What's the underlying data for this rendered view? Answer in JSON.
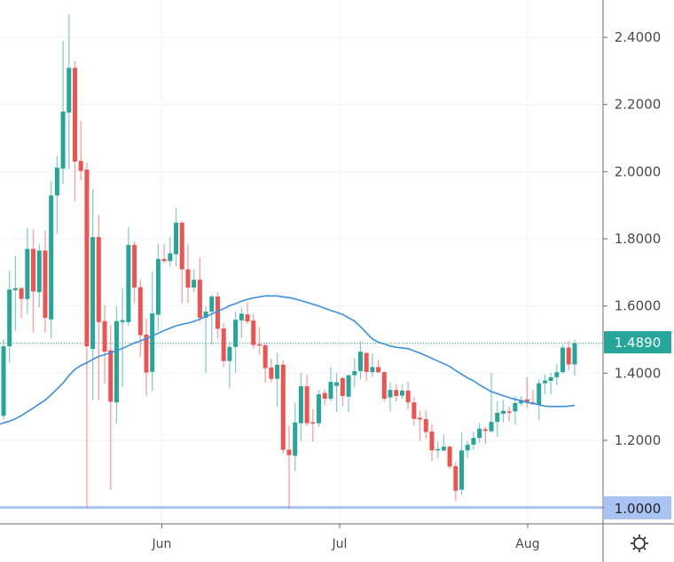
{
  "chart_data": {
    "type": "candlestick",
    "interval": "daily",
    "ylim": [
      0.95,
      2.51
    ],
    "grid": true,
    "y_ticks": [
      "2.4000",
      "2.2000",
      "2.0000",
      "1.8000",
      "1.6000",
      "1.4000",
      "1.2000"
    ],
    "y_tick_values": [
      2.4,
      2.2,
      2.0,
      1.8,
      1.6,
      1.4,
      1.2
    ],
    "x_ticks": [
      "Jun",
      "Jul",
      "Aug"
    ],
    "last_price": {
      "label": "1.4890",
      "value": 1.489,
      "color": "#26a69a"
    },
    "horizontal_line": {
      "label": "1.0000",
      "value": 1.0,
      "color": "#a9c3f2"
    },
    "colors": {
      "up": "#26a69a",
      "down": "#ef5350",
      "ma": "#3a8fe0"
    },
    "candles_ohlc": [
      [
        1.273,
        1.5,
        1.263,
        1.48
      ],
      [
        1.48,
        1.704,
        1.431,
        1.649
      ],
      [
        1.647,
        1.75,
        1.525,
        1.653
      ],
      [
        1.653,
        1.656,
        1.563,
        1.621
      ],
      [
        1.621,
        1.833,
        1.576,
        1.77
      ],
      [
        1.77,
        1.828,
        1.522,
        1.643
      ],
      [
        1.641,
        1.784,
        1.596,
        1.765
      ],
      [
        1.765,
        1.823,
        1.522,
        1.565
      ],
      [
        1.56,
        1.971,
        1.502,
        1.929
      ],
      [
        1.929,
        2.045,
        1.815,
        2.012
      ],
      [
        2.009,
        2.39,
        1.964,
        2.179
      ],
      [
        2.176,
        2.469,
        2.007,
        2.309
      ],
      [
        2.309,
        2.329,
        1.912,
        2.03
      ],
      [
        2.032,
        2.151,
        1.974,
        2.002
      ],
      [
        2.006,
        2.027,
        1.0,
        1.48
      ],
      [
        1.472,
        1.949,
        1.32,
        1.805
      ],
      [
        1.805,
        1.871,
        1.32,
        1.552
      ],
      [
        1.555,
        1.603,
        1.369,
        1.464
      ],
      [
        1.468,
        1.542,
        1.053,
        1.315
      ],
      [
        1.313,
        1.599,
        1.25,
        1.555
      ],
      [
        1.552,
        1.653,
        1.359,
        1.558
      ],
      [
        1.552,
        1.835,
        1.54,
        1.782
      ],
      [
        1.782,
        1.793,
        1.608,
        1.655
      ],
      [
        1.656,
        1.68,
        1.449,
        1.513
      ],
      [
        1.515,
        1.563,
        1.333,
        1.402
      ],
      [
        1.404,
        1.702,
        1.347,
        1.578
      ],
      [
        1.574,
        1.784,
        1.525,
        1.74
      ],
      [
        1.74,
        1.784,
        1.727,
        1.734
      ],
      [
        1.734,
        1.806,
        1.717,
        1.757
      ],
      [
        1.754,
        1.891,
        1.717,
        1.848
      ],
      [
        1.848,
        1.853,
        1.608,
        1.709
      ],
      [
        1.709,
        1.784,
        1.608,
        1.655
      ],
      [
        1.655,
        1.709,
        1.641,
        1.678
      ],
      [
        1.678,
        1.744,
        1.552,
        1.565
      ],
      [
        1.565,
        1.599,
        1.401,
        1.583
      ],
      [
        1.583,
        1.633,
        1.485,
        1.628
      ],
      [
        1.628,
        1.641,
        1.502,
        1.532
      ],
      [
        1.533,
        1.549,
        1.418,
        1.436
      ],
      [
        1.436,
        1.493,
        1.355,
        1.478
      ],
      [
        1.478,
        1.583,
        1.401,
        1.559
      ],
      [
        1.557,
        1.596,
        1.505,
        1.577
      ],
      [
        1.575,
        1.61,
        1.546,
        1.554
      ],
      [
        1.557,
        1.575,
        1.473,
        1.484
      ],
      [
        1.486,
        1.537,
        1.455,
        1.482
      ],
      [
        1.483,
        1.491,
        1.372,
        1.415
      ],
      [
        1.417,
        1.443,
        1.372,
        1.383
      ],
      [
        1.383,
        1.461,
        1.299,
        1.425
      ],
      [
        1.425,
        1.438,
        1.161,
        1.172
      ],
      [
        1.172,
        1.244,
        0.997,
        1.156
      ],
      [
        1.154,
        1.311,
        1.108,
        1.253
      ],
      [
        1.251,
        1.401,
        1.198,
        1.361
      ],
      [
        1.361,
        1.395,
        1.242,
        1.251
      ],
      [
        1.254,
        1.293,
        1.196,
        1.251
      ],
      [
        1.251,
        1.35,
        1.24,
        1.337
      ],
      [
        1.341,
        1.352,
        1.304,
        1.324
      ],
      [
        1.324,
        1.418,
        1.317,
        1.374
      ],
      [
        1.362,
        1.401,
        1.284,
        1.373
      ],
      [
        1.385,
        1.39,
        1.302,
        1.332
      ],
      [
        1.33,
        1.394,
        1.284,
        1.394
      ],
      [
        1.394,
        1.445,
        1.358,
        1.406
      ],
      [
        1.406,
        1.495,
        1.381,
        1.464
      ],
      [
        1.46,
        1.462,
        1.376,
        1.404
      ],
      [
        1.403,
        1.458,
        1.389,
        1.418
      ],
      [
        1.418,
        1.44,
        1.399,
        1.403
      ],
      [
        1.403,
        1.405,
        1.317,
        1.324
      ],
      [
        1.328,
        1.373,
        1.286,
        1.35
      ],
      [
        1.35,
        1.367,
        1.315,
        1.332
      ],
      [
        1.333,
        1.366,
        1.323,
        1.348
      ],
      [
        1.348,
        1.374,
        1.291,
        1.313
      ],
      [
        1.313,
        1.329,
        1.244,
        1.264
      ],
      [
        1.267,
        1.288,
        1.198,
        1.262
      ],
      [
        1.263,
        1.289,
        1.205,
        1.225
      ],
      [
        1.226,
        1.247,
        1.138,
        1.17
      ],
      [
        1.17,
        1.196,
        1.148,
        1.174
      ],
      [
        1.17,
        1.218,
        1.167,
        1.181
      ],
      [
        1.181,
        1.185,
        1.115,
        1.122
      ],
      [
        1.123,
        1.135,
        1.02,
        1.05
      ],
      [
        1.053,
        1.223,
        1.038,
        1.17
      ],
      [
        1.17,
        1.198,
        1.147,
        1.187
      ],
      [
        1.187,
        1.225,
        1.172,
        1.207
      ],
      [
        1.207,
        1.251,
        1.194,
        1.235
      ],
      [
        1.233,
        1.24,
        1.189,
        1.228
      ],
      [
        1.227,
        1.401,
        1.223,
        1.255
      ],
      [
        1.255,
        1.317,
        1.211,
        1.282
      ],
      [
        1.279,
        1.32,
        1.253,
        1.288
      ],
      [
        1.286,
        1.3,
        1.257,
        1.285
      ],
      [
        1.286,
        1.332,
        1.247,
        1.311
      ],
      [
        1.31,
        1.332,
        1.302,
        1.32
      ],
      [
        1.322,
        1.388,
        1.297,
        1.315
      ],
      [
        1.313,
        1.35,
        1.306,
        1.307
      ],
      [
        1.307,
        1.383,
        1.26,
        1.37
      ],
      [
        1.37,
        1.397,
        1.337,
        1.378
      ],
      [
        1.377,
        1.401,
        1.337,
        1.388
      ],
      [
        1.388,
        1.427,
        1.364,
        1.403
      ],
      [
        1.403,
        1.485,
        1.398,
        1.476
      ],
      [
        1.476,
        1.496,
        1.408,
        1.426
      ],
      [
        1.426,
        1.5,
        1.392,
        1.489
      ]
    ],
    "moving_average": [
      1.252,
      1.257,
      1.264,
      1.274,
      1.285,
      1.296,
      1.308,
      1.32,
      1.336,
      1.353,
      1.371,
      1.393,
      1.411,
      1.423,
      1.431,
      1.441,
      1.45,
      1.455,
      1.461,
      1.467,
      1.474,
      1.482,
      1.49,
      1.496,
      1.503,
      1.511,
      1.519,
      1.527,
      1.534,
      1.541,
      1.545,
      1.549,
      1.554,
      1.561,
      1.568,
      1.576,
      1.584,
      1.592,
      1.601,
      1.607,
      1.614,
      1.62,
      1.624,
      1.627,
      1.63,
      1.63,
      1.63,
      1.627,
      1.625,
      1.621,
      1.616,
      1.611,
      1.605,
      1.6,
      1.593,
      1.587,
      1.581,
      1.575,
      1.565,
      1.555,
      1.538,
      1.52,
      1.502,
      1.492,
      1.487,
      1.481,
      1.477,
      1.475,
      1.473,
      1.466,
      1.46,
      1.452,
      1.444,
      1.436,
      1.428,
      1.42,
      1.408,
      1.397,
      1.386,
      1.377,
      1.365,
      1.355,
      1.345,
      1.339,
      1.333,
      1.327,
      1.322,
      1.318,
      1.313,
      1.31,
      1.306,
      1.302,
      1.301,
      1.301,
      1.301,
      1.302,
      1.304
    ]
  },
  "toolbar": {
    "settings_icon": "gear-icon"
  }
}
